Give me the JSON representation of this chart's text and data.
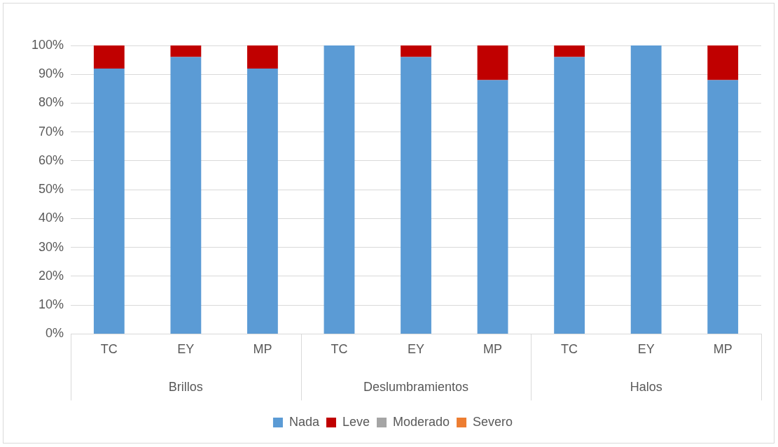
{
  "chart_data": {
    "type": "bar",
    "stacked": true,
    "categories": [
      "TC",
      "EY",
      "MP",
      "TC",
      "EY",
      "MP",
      "TC",
      "EY",
      "MP"
    ],
    "series": [
      {
        "name": "Nada",
        "color": "#5b9bd5",
        "values": [
          92,
          96,
          92,
          100,
          96,
          88,
          96,
          100,
          88
        ]
      },
      {
        "name": "Leve",
        "color": "#c00000",
        "values": [
          8,
          4,
          8,
          0,
          4,
          12,
          4,
          0,
          12
        ]
      },
      {
        "name": "Moderado",
        "color": "#a5a5a5",
        "values": [
          0,
          0,
          0,
          0,
          0,
          0,
          0,
          0,
          0
        ]
      },
      {
        "name": "Severo",
        "color": "#ed7d31",
        "values": [
          0,
          0,
          0,
          0,
          0,
          0,
          0,
          0,
          0
        ]
      }
    ],
    "ylim": [
      0,
      100
    ],
    "yticks": [
      {
        "value": 0,
        "label": "0%"
      },
      {
        "value": 10,
        "label": "10%"
      },
      {
        "value": 20,
        "label": "20%"
      },
      {
        "value": 30,
        "label": "30%"
      },
      {
        "value": 40,
        "label": "40%"
      },
      {
        "value": 50,
        "label": "50%"
      },
      {
        "value": 60,
        "label": "60%"
      },
      {
        "value": 70,
        "label": "70%"
      },
      {
        "value": 80,
        "label": "80%"
      },
      {
        "value": 90,
        "label": "90%"
      },
      {
        "value": 100,
        "label": "100%"
      }
    ],
    "annotations": [
      "Brillos",
      "Deslumbramientos",
      "Halos"
    ],
    "grid": "y",
    "legend": "bottom"
  }
}
